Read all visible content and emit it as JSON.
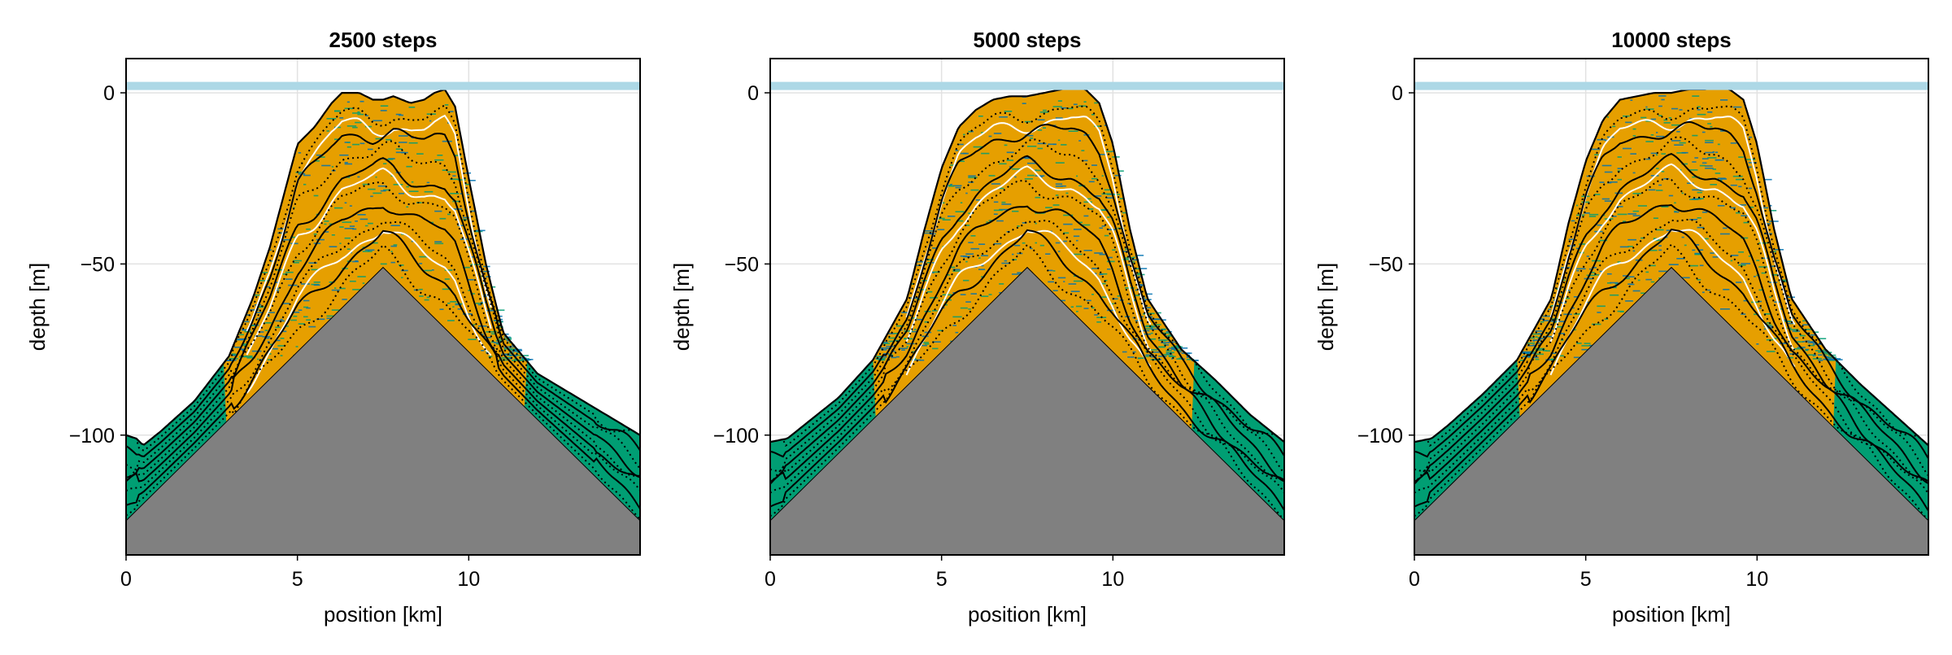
{
  "colors": {
    "basement": "#808080",
    "lagoon": "#e69f00",
    "reef": "#0072b2",
    "slope": "#009e73",
    "sea_level": "#add8e6",
    "time_line": "#000000",
    "white_line": "#ffffff"
  },
  "chart_data": [
    {
      "type": "area",
      "title": "2500 steps",
      "xlabel": "position [km]",
      "ylabel": "depth [m]",
      "xlim": [
        0,
        15
      ],
      "ylim": [
        -135,
        10
      ],
      "xticks": [
        {
          "value": 0,
          "label": "0"
        },
        {
          "value": 5,
          "label": "5"
        },
        {
          "value": 10,
          "label": "10"
        }
      ],
      "yticks": [
        {
          "value": 0,
          "label": "0"
        },
        {
          "value": -50,
          "label": "−50"
        },
        {
          "value": -100,
          "label": "−100"
        }
      ],
      "grid": true,
      "sea_level": 2,
      "basement": {
        "x": [
          0,
          7.5,
          15
        ],
        "y": [
          -125,
          -51,
          -125
        ]
      },
      "surface": {
        "x": [
          0,
          0.3,
          0.5,
          1,
          2,
          3,
          3.7,
          4.2,
          4.6,
          5,
          5.5,
          6,
          6.3,
          6.8,
          7.2,
          7.5,
          7.8,
          8.3,
          8.7,
          9.0,
          9.3,
          9.6,
          10,
          10.5,
          11,
          12,
          13,
          14,
          14.5,
          15
        ],
        "y": [
          -100,
          -101,
          -103,
          -99,
          -90,
          -77,
          -60,
          -45,
          -30,
          -15,
          -10,
          -3,
          0,
          0,
          -2,
          -2,
          -1,
          -3,
          -2,
          0,
          1,
          -4,
          -25,
          -50,
          -70,
          -82,
          -88,
          -94,
          -97,
          -100
        ]
      },
      "layer_surfaces": {
        "count": 10,
        "solid_every": 2
      }
    },
    {
      "type": "area",
      "title": "5000 steps",
      "xlabel": "position [km]",
      "ylabel": "depth [m]",
      "xlim": [
        0,
        15
      ],
      "ylim": [
        -135,
        10
      ],
      "xticks": [
        {
          "value": 0,
          "label": "0"
        },
        {
          "value": 5,
          "label": "5"
        },
        {
          "value": 10,
          "label": "10"
        }
      ],
      "yticks": [
        {
          "value": 0,
          "label": "0"
        },
        {
          "value": -50,
          "label": "−50"
        },
        {
          "value": -100,
          "label": "−100"
        }
      ],
      "grid": true,
      "sea_level": 2,
      "basement": {
        "x": [
          0,
          7.5,
          15
        ],
        "y": [
          -125,
          -51,
          -125
        ]
      },
      "surface": {
        "x": [
          0,
          0.5,
          1,
          2,
          3,
          4,
          4.5,
          5,
          5.5,
          6,
          6.5,
          7,
          7.5,
          8,
          8.5,
          8.8,
          9.2,
          9.6,
          10,
          10.5,
          11,
          12,
          13,
          14,
          15
        ],
        "y": [
          -102,
          -101,
          -97,
          -89,
          -78,
          -60,
          -40,
          -22,
          -10,
          -5,
          -2,
          -1,
          -1,
          0,
          1,
          2,
          1,
          -3,
          -15,
          -40,
          -60,
          -75,
          -84,
          -94,
          -102
        ]
      },
      "layer_surfaces": {
        "count": 10,
        "solid_every": 2
      }
    },
    {
      "type": "area",
      "title": "10000 steps",
      "xlabel": "position [km]",
      "ylabel": "depth [m]",
      "xlim": [
        0,
        15
      ],
      "ylim": [
        -135,
        10
      ],
      "xticks": [
        {
          "value": 0,
          "label": "0"
        },
        {
          "value": 5,
          "label": "5"
        },
        {
          "value": 10,
          "label": "10"
        }
      ],
      "yticks": [
        {
          "value": 0,
          "label": "0"
        },
        {
          "value": -50,
          "label": "−50"
        },
        {
          "value": -100,
          "label": "−100"
        }
      ],
      "grid": true,
      "sea_level": 2,
      "basement": {
        "x": [
          0,
          7.5,
          15
        ],
        "y": [
          -125,
          -51,
          -125
        ]
      },
      "surface": {
        "x": [
          0,
          0.5,
          1,
          2,
          3,
          4,
          4.5,
          5,
          5.5,
          6,
          6.5,
          7,
          7.5,
          8,
          8.5,
          8.8,
          9.2,
          9.6,
          10,
          10.5,
          11,
          12,
          13,
          14,
          15
        ],
        "y": [
          -102,
          -101,
          -97,
          -88,
          -78,
          -60,
          -38,
          -20,
          -8,
          -2,
          -1,
          0,
          0,
          1,
          1,
          2,
          1,
          -2,
          -15,
          -40,
          -60,
          -75,
          -85,
          -94,
          -103
        ]
      },
      "layer_surfaces": {
        "count": 10,
        "solid_every": 2
      }
    }
  ]
}
